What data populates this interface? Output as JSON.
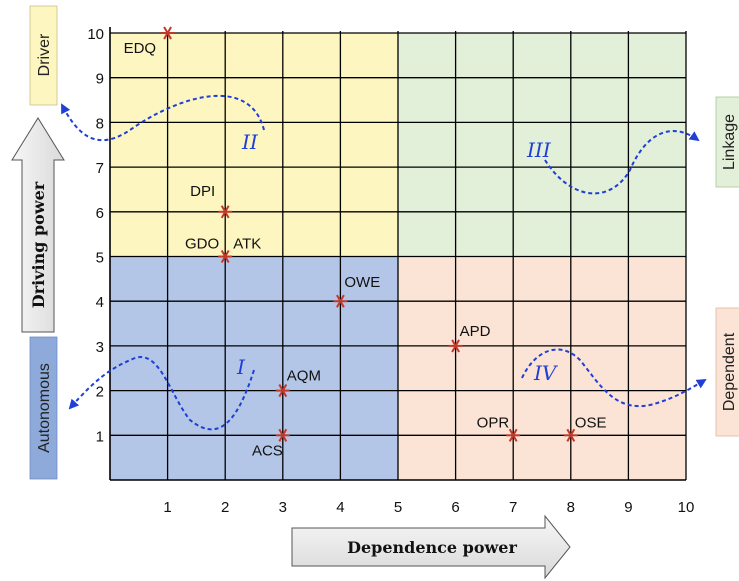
{
  "chart_data": {
    "type": "scatter",
    "xlabel": "Dependence power",
    "ylabel": "Driving power",
    "xlim": [
      0,
      10
    ],
    "ylim": [
      0,
      10
    ],
    "grid": true,
    "xticks": [
      "1",
      "2",
      "3",
      "4",
      "5",
      "6",
      "7",
      "8",
      "9",
      "10"
    ],
    "yticks": [
      "1",
      "2",
      "3",
      "4",
      "5",
      "6",
      "7",
      "8",
      "9",
      "10"
    ],
    "quadrants": [
      {
        "label": "I",
        "name": "Autonomous",
        "x_range": [
          0,
          5
        ],
        "y_range": [
          0,
          5
        ],
        "color": "#b4c6e7"
      },
      {
        "label": "II",
        "name": "Driver",
        "x_range": [
          0,
          5
        ],
        "y_range": [
          5,
          10
        ],
        "color": "#fdf6c0"
      },
      {
        "label": "III",
        "name": "Linkage",
        "x_range": [
          5,
          10
        ],
        "y_range": [
          5,
          10
        ],
        "color": "#e2efd9"
      },
      {
        "label": "IV",
        "name": "Dependent",
        "x_range": [
          5,
          10
        ],
        "y_range": [
          0,
          5
        ],
        "color": "#fbe4d5"
      }
    ],
    "points": [
      {
        "label": "EDQ",
        "x": 1,
        "y": 10
      },
      {
        "label": "DPI",
        "x": 2,
        "y": 6
      },
      {
        "label": "GDO",
        "x": 2,
        "y": 5
      },
      {
        "label": "ATK",
        "x": 2,
        "y": 5
      },
      {
        "label": "OWE",
        "x": 4,
        "y": 4
      },
      {
        "label": "AQM",
        "x": 3,
        "y": 2
      },
      {
        "label": "ACS",
        "x": 3,
        "y": 1
      },
      {
        "label": "APD",
        "x": 6,
        "y": 3
      },
      {
        "label": "OPR",
        "x": 7,
        "y": 1
      },
      {
        "label": "OSE",
        "x": 8,
        "y": 1
      }
    ],
    "colors": {
      "marker": "#c0392b",
      "dashed_arrow": "#1f3fd6",
      "grid": "#000000"
    }
  }
}
